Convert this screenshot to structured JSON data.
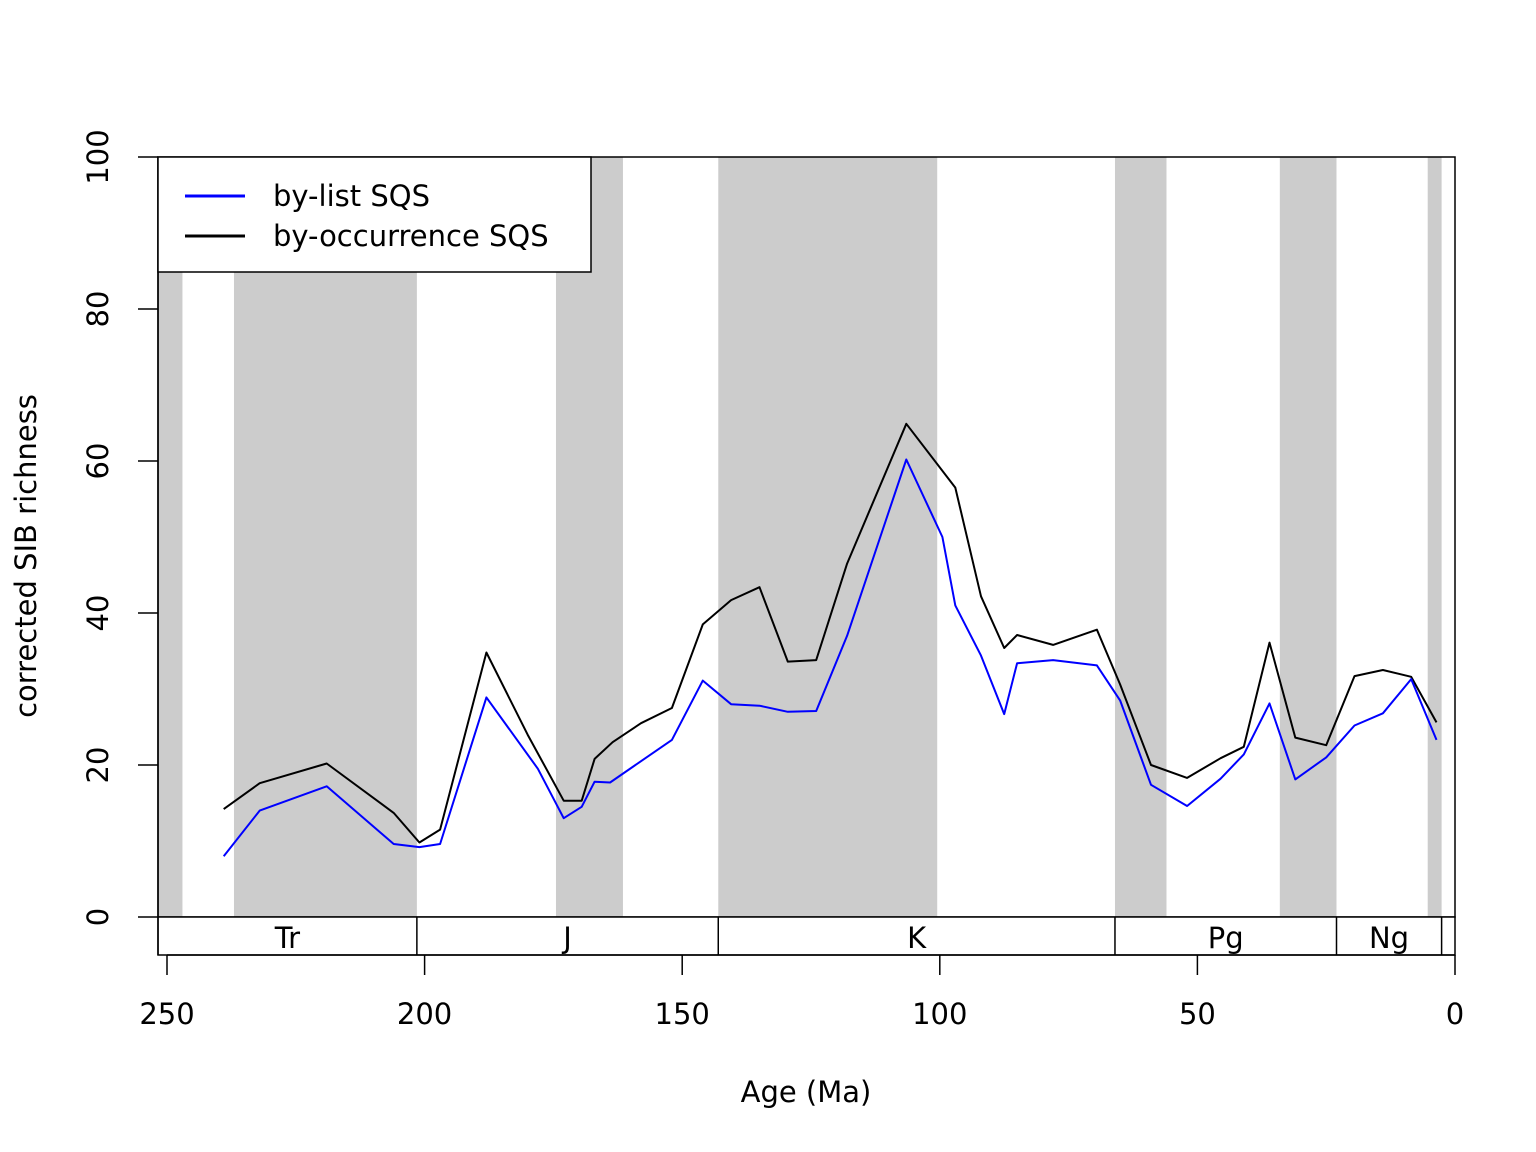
{
  "chart_data": {
    "type": "line",
    "xlabel": "Age (Ma)",
    "ylabel": "corrected SIB richness",
    "xlim": [
      252,
      0
    ],
    "ylim": [
      0,
      100
    ],
    "x_ticks": [
      250,
      200,
      150,
      100,
      50,
      0
    ],
    "y_ticks": [
      0,
      20,
      40,
      60,
      80,
      100
    ],
    "grid": false,
    "legend_position": "top-left",
    "shaded_stages": [
      [
        252,
        247
      ],
      [
        237,
        201.5
      ],
      [
        174.5,
        161.5
      ],
      [
        143,
        100.5
      ],
      [
        66,
        56
      ],
      [
        34,
        23
      ],
      [
        5.3,
        2.6
      ]
    ],
    "periods": [
      {
        "label": "Tr",
        "start": 252,
        "end": 201.5
      },
      {
        "label": "J",
        "start": 201.5,
        "end": 143
      },
      {
        "label": "K",
        "start": 143,
        "end": 66
      },
      {
        "label": "Pg",
        "start": 66,
        "end": 23
      },
      {
        "label": "Ng",
        "start": 23,
        "end": 2.6
      }
    ],
    "series": [
      {
        "name": "by-list SQS",
        "color": "#0000ff",
        "points": [
          [
            239,
            8.0
          ],
          [
            232,
            14.0
          ],
          [
            219,
            17.2
          ],
          [
            206,
            9.6
          ],
          [
            201,
            9.2
          ],
          [
            197,
            9.6
          ],
          [
            188,
            28.9
          ],
          [
            178,
            19.5
          ],
          [
            173,
            13.0
          ],
          [
            169.5,
            14.5
          ],
          [
            167,
            17.8
          ],
          [
            164,
            17.7
          ],
          [
            158,
            20.5
          ],
          [
            152,
            23.3
          ],
          [
            146,
            31.1
          ],
          [
            140.5,
            28.0
          ],
          [
            135,
            27.8
          ],
          [
            129.5,
            27.0
          ],
          [
            124,
            27.1
          ],
          [
            118,
            37.0
          ],
          [
            106.5,
            60.2
          ],
          [
            99.5,
            50.0
          ],
          [
            97,
            41.0
          ],
          [
            92,
            34.4
          ],
          [
            87.5,
            26.7
          ],
          [
            85,
            33.4
          ],
          [
            78,
            33.8
          ],
          [
            69.5,
            33.1
          ],
          [
            65,
            28.5
          ],
          [
            59,
            17.4
          ],
          [
            52,
            14.6
          ],
          [
            45.5,
            18.2
          ],
          [
            41,
            21.4
          ],
          [
            36,
            28.1
          ],
          [
            31,
            18.1
          ],
          [
            25,
            21.0
          ],
          [
            19.5,
            25.2
          ],
          [
            14,
            26.8
          ],
          [
            8.5,
            31.3
          ],
          [
            3.6,
            23.3
          ]
        ]
      },
      {
        "name": "by-occurrence SQS",
        "color": "#000000",
        "points": [
          [
            239,
            14.2
          ],
          [
            232,
            17.6
          ],
          [
            219,
            20.2
          ],
          [
            206,
            13.7
          ],
          [
            201,
            9.8
          ],
          [
            197,
            11.5
          ],
          [
            188,
            34.8
          ],
          [
            180,
            24.0
          ],
          [
            173,
            15.3
          ],
          [
            169.5,
            15.3
          ],
          [
            167,
            20.8
          ],
          [
            163.5,
            23.0
          ],
          [
            158,
            25.5
          ],
          [
            152,
            27.5
          ],
          [
            146,
            38.5
          ],
          [
            140.5,
            41.7
          ],
          [
            135,
            43.4
          ],
          [
            129.5,
            33.6
          ],
          [
            124,
            33.8
          ],
          [
            118,
            46.5
          ],
          [
            106.5,
            64.9
          ],
          [
            97,
            56.5
          ],
          [
            92,
            42.2
          ],
          [
            87.5,
            35.4
          ],
          [
            85,
            37.1
          ],
          [
            78,
            35.8
          ],
          [
            69.5,
            37.8
          ],
          [
            65,
            30.6
          ],
          [
            59,
            20.0
          ],
          [
            52,
            18.3
          ],
          [
            45.5,
            20.9
          ],
          [
            41,
            22.4
          ],
          [
            36,
            36.1
          ],
          [
            31,
            23.6
          ],
          [
            25,
            22.6
          ],
          [
            19.5,
            31.7
          ],
          [
            14,
            32.5
          ],
          [
            8.5,
            31.6
          ],
          [
            3.6,
            25.6
          ]
        ]
      }
    ]
  }
}
